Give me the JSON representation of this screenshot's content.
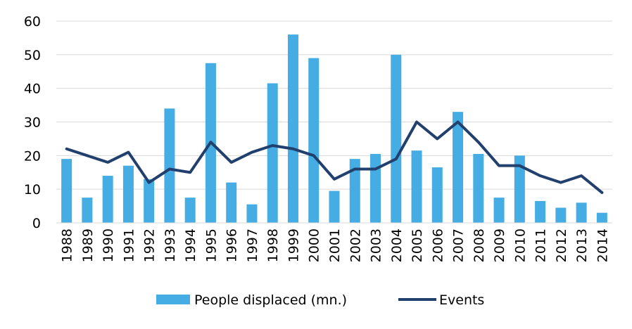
{
  "chart_data": {
    "type": "bar",
    "categories": [
      "1988",
      "1989",
      "1990",
      "1991",
      "1992",
      "1993",
      "1994",
      "1995",
      "1996",
      "1997",
      "1998",
      "1999",
      "2000",
      "2001",
      "2002",
      "2003",
      "2004",
      "2005",
      "2006",
      "2007",
      "2008",
      "2009",
      "2010",
      "2011",
      "2012",
      "2013",
      "2014"
    ],
    "series": [
      {
        "name": "People displaced (mn.)",
        "type": "bar",
        "color": "#45ADE3",
        "values": [
          19,
          7.5,
          14,
          17,
          13,
          34,
          7.5,
          47.5,
          12,
          5.5,
          41.5,
          56,
          49,
          9.5,
          19,
          20.5,
          50,
          21.5,
          16.5,
          33,
          20.5,
          7.5,
          20,
          6.5,
          4.5,
          6,
          3
        ]
      },
      {
        "name": "Events",
        "type": "line",
        "color": "#22406E",
        "values": [
          22,
          20,
          18,
          21,
          12,
          16,
          15,
          24,
          18,
          21,
          23,
          22,
          20,
          13,
          16,
          16,
          19,
          30,
          25,
          30,
          24,
          17,
          17,
          14,
          12,
          14,
          9
        ]
      }
    ],
    "yticks": [
      "0",
      "10",
      "20",
      "30",
      "40",
      "50",
      "60"
    ],
    "ylim": [
      0,
      60
    ],
    "grid": true,
    "legend_position": "bottom"
  }
}
